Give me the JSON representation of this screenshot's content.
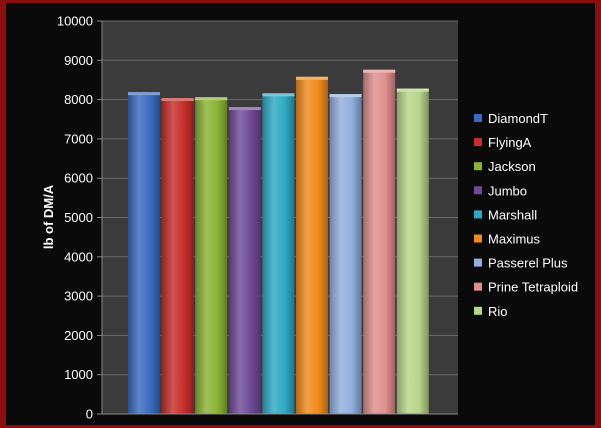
{
  "chart_data": {
    "type": "bar",
    "title": "",
    "xlabel": "",
    "ylabel": "lb of DM/A",
    "ylim": [
      0,
      10000
    ],
    "yticks": [
      0,
      1000,
      2000,
      3000,
      4000,
      5000,
      6000,
      7000,
      8000,
      9000,
      10000
    ],
    "grid": true,
    "legend_position": "right",
    "series": [
      {
        "name": "DiamondT",
        "value": 8190,
        "color": "#3a6bbf"
      },
      {
        "name": "FlyingA",
        "value": 8040,
        "color": "#c62f2c"
      },
      {
        "name": "Jackson",
        "value": 8060,
        "color": "#8ab334"
      },
      {
        "name": "Jumbo",
        "value": 7810,
        "color": "#6f4a97"
      },
      {
        "name": "Marshall",
        "value": 8160,
        "color": "#2fa9c4"
      },
      {
        "name": "Maximus",
        "value": 8580,
        "color": "#f08a1c"
      },
      {
        "name": "Passerel Plus",
        "value": 8140,
        "color": "#92afdd"
      },
      {
        "name": "Prine Tetraploid",
        "value": 8760,
        "color": "#de8f8c"
      },
      {
        "name": "Rio",
        "value": 8280,
        "color": "#b7d48a"
      }
    ]
  }
}
